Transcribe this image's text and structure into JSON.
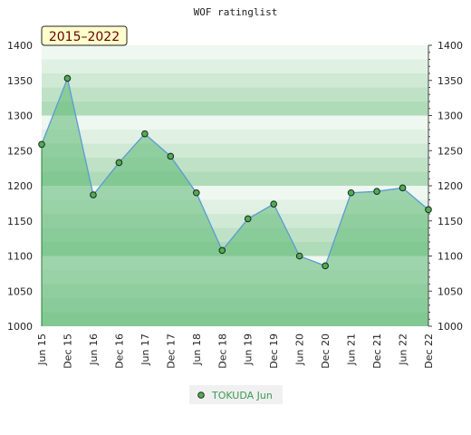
{
  "chart_data": {
    "type": "area",
    "title": "WOF ratinglist",
    "period_badge": "2015–2022",
    "categories": [
      "Jun 15",
      "Dec 15",
      "Jun 16",
      "Dec 16",
      "Jun 17",
      "Dec 17",
      "Jun 18",
      "Dec 18",
      "Jun 19",
      "Dec 19",
      "Jun 20",
      "Dec 20",
      "Jun 21",
      "Dec 21",
      "Jun 22",
      "Dec 22"
    ],
    "series": [
      {
        "name": "TOKUDA Jun",
        "values": [
          1259,
          1353,
          1187,
          1233,
          1274,
          1242,
          1190,
          1108,
          1153,
          1174,
          1100,
          1086,
          1190,
          1192,
          1197,
          1166
        ]
      }
    ],
    "ylim": [
      1000,
      1400
    ],
    "yticks": [
      1000,
      1050,
      1100,
      1150,
      1200,
      1250,
      1300,
      1350,
      1400
    ],
    "grid": true,
    "legend": "bottom-center",
    "colors": {
      "line": "#5b9bd5",
      "fill": "#5cb874",
      "marker_fill": "#4caf50",
      "marker_stroke": "#222222",
      "badge_bg": "#ffffcc",
      "legend_text": "#3a9a55"
    }
  }
}
